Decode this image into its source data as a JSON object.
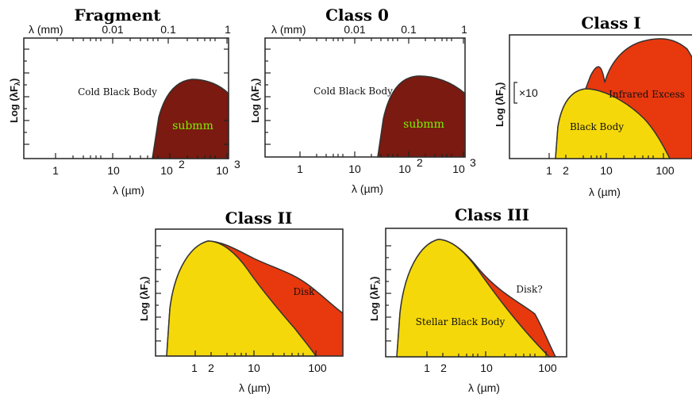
{
  "colors": {
    "submm": "#7a1a10",
    "black_body": "#f5d80a",
    "excess": "#e8380e",
    "submm_text": "#7cf000"
  },
  "panels": {
    "fragment": {
      "title": "Fragment",
      "top_axis_label": "λ (mm)",
      "top_ticks": [
        "0.01",
        "0.1",
        "1"
      ],
      "bottom_ticks": [
        "1",
        "10",
        "10",
        "2",
        "10",
        "3"
      ],
      "x_label": "λ (µm)",
      "y_label": "Log (λF",
      "y_label_sub": "λ",
      "y_label_close": ")",
      "annotation": "Cold Black Body",
      "region_label": "submm"
    },
    "class0": {
      "title": "Class 0",
      "top_axis_label": "λ (mm)",
      "top_ticks": [
        "0.01",
        "0.1",
        "1"
      ],
      "bottom_ticks": [
        "1",
        "10",
        "10",
        "2",
        "10",
        "3"
      ],
      "x_label": "λ (µm)",
      "y_label": "Log (λF",
      "y_label_sub": "λ",
      "y_label_close": ")",
      "annotation": "Cold Black Body",
      "region_label": "submm"
    },
    "class1": {
      "title": "Class I",
      "bottom_ticks": [
        "1",
        "2",
        "10",
        "100"
      ],
      "x_label": "λ (µm)",
      "y_label": "Log (λF",
      "y_label_sub": "λ",
      "y_label_close": ")",
      "scale_marker": "×10",
      "annotation_excess": "Infrared Excess",
      "annotation_bb": "Black Body"
    },
    "class2": {
      "title": "Class II",
      "bottom_ticks": [
        "1",
        "2",
        "10",
        "100"
      ],
      "x_label": "λ (µm)",
      "y_label": "Log (λF",
      "y_label_sub": "λ",
      "y_label_close": ")",
      "annotation_disk": "Disk"
    },
    "class3": {
      "title": "Class III",
      "bottom_ticks": [
        "1",
        "2",
        "10",
        "100"
      ],
      "x_label": "λ (µm)",
      "y_label": "Log (λF",
      "y_label_sub": "λ",
      "y_label_close": ")",
      "annotation_disk": "Disk?",
      "annotation_bb": "Stellar Black Body"
    }
  }
}
